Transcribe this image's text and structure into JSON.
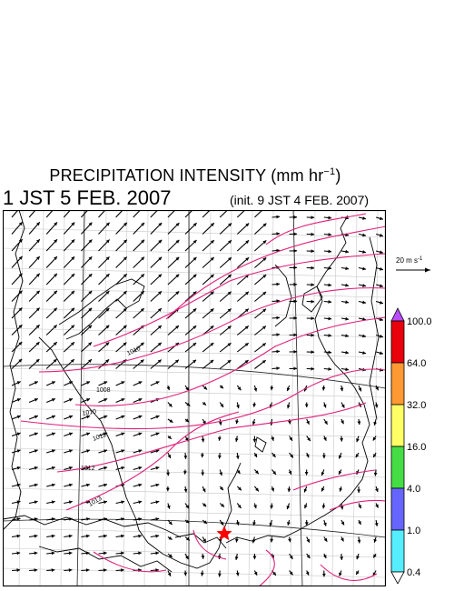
{
  "header": {
    "title_main": "PRECIPITATION INTENSITY (mm hr",
    "title_exp": "−1",
    "title_close": ")",
    "valid_time": "1 JST 5 FEB. 2007",
    "init_time": "(init. 9 JST 4 FEB. 2007)"
  },
  "wind_scale": {
    "label": "20 m s",
    "exp": "-1"
  },
  "colorbar": {
    "top_triangle_color": "#b84cff",
    "bottom_triangle_color": "#ffffff",
    "bins": [
      {
        "color": "#e8000b"
      },
      {
        "color": "#ff9933"
      },
      {
        "color": "#ffff66"
      },
      {
        "color": "#44dd44"
      },
      {
        "color": "#6666ff"
      },
      {
        "color": "#55eeff"
      }
    ],
    "labels": [
      "100.0",
      "64.0",
      "32.0",
      "16.0",
      "4.0",
      "1.0",
      "0.4"
    ]
  },
  "isobars": {
    "color": "#e0207a",
    "labels": [
      "1010",
      "1008",
      "1010",
      "1012",
      "1012",
      "1013"
    ]
  },
  "marker": {
    "type": "star",
    "color": "#ff0000"
  }
}
